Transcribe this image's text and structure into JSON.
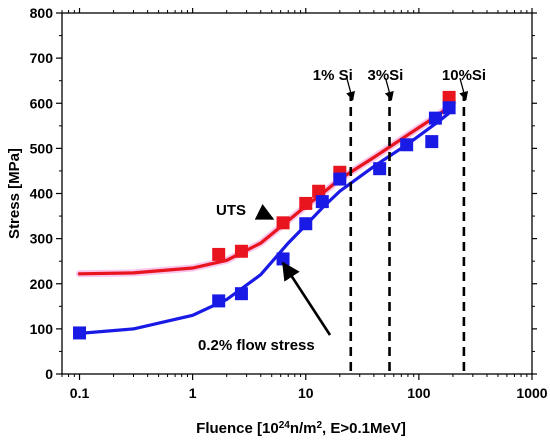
{
  "chart_data": {
    "type": "scatter",
    "xscale": "log",
    "xlim": [
      0.07,
      1000
    ],
    "ylim": [
      0,
      800
    ],
    "xlabel": {
      "base": "Fluence [10",
      "sup1": "24",
      "mid": "n/m",
      "sup2": "2",
      "end": ", E>0.1MeV]"
    },
    "ylabel": "Stress [MPa]",
    "xticks": [
      0.1,
      1,
      10,
      100,
      1000
    ],
    "xtick_labels": [
      "0.1",
      "1",
      "10",
      "100",
      "1000"
    ],
    "yticks": [
      0,
      100,
      200,
      300,
      400,
      500,
      600,
      700,
      800
    ],
    "ytick_labels": [
      "0",
      "100",
      "200",
      "300",
      "400",
      "500",
      "600",
      "700",
      "800"
    ],
    "grid": false,
    "series": [
      {
        "name": "UTS",
        "color": "#e8141e",
        "marker": "square",
        "points": [
          {
            "x": 1.7,
            "y": 265
          },
          {
            "x": 2.7,
            "y": 272
          },
          {
            "x": 6.3,
            "y": 335
          },
          {
            "x": 10.0,
            "y": 378
          },
          {
            "x": 13.0,
            "y": 405
          },
          {
            "x": 20.0,
            "y": 447
          },
          {
            "x": 185,
            "y": 613
          }
        ],
        "fit": [
          {
            "x": 0.1,
            "y": 222
          },
          {
            "x": 0.3,
            "y": 224
          },
          {
            "x": 1.0,
            "y": 235
          },
          {
            "x": 2.0,
            "y": 252
          },
          {
            "x": 4.0,
            "y": 290
          },
          {
            "x": 7.0,
            "y": 340
          },
          {
            "x": 10.0,
            "y": 372
          },
          {
            "x": 14.0,
            "y": 400
          },
          {
            "x": 20.0,
            "y": 432
          },
          {
            "x": 40.0,
            "y": 480
          },
          {
            "x": 80.0,
            "y": 530
          },
          {
            "x": 150.0,
            "y": 575
          },
          {
            "x": 200.0,
            "y": 600
          }
        ]
      },
      {
        "name": "0.2% flow stress",
        "color": "#1a1ae6",
        "marker": "square",
        "points": [
          {
            "x": 0.1,
            "y": 91
          },
          {
            "x": 1.7,
            "y": 162
          },
          {
            "x": 2.7,
            "y": 178
          },
          {
            "x": 6.3,
            "y": 255
          },
          {
            "x": 10.0,
            "y": 333
          },
          {
            "x": 14.0,
            "y": 382
          },
          {
            "x": 20.0,
            "y": 432
          },
          {
            "x": 45,
            "y": 455
          },
          {
            "x": 78,
            "y": 508
          },
          {
            "x": 130,
            "y": 515
          },
          {
            "x": 140,
            "y": 567
          },
          {
            "x": 185,
            "y": 590
          }
        ],
        "fit": [
          {
            "x": 0.1,
            "y": 90
          },
          {
            "x": 0.3,
            "y": 100
          },
          {
            "x": 1.0,
            "y": 130
          },
          {
            "x": 2.0,
            "y": 165
          },
          {
            "x": 4.0,
            "y": 220
          },
          {
            "x": 7.0,
            "y": 290
          },
          {
            "x": 10.0,
            "y": 330
          },
          {
            "x": 14.0,
            "y": 368
          },
          {
            "x": 20.0,
            "y": 405
          },
          {
            "x": 40.0,
            "y": 460
          },
          {
            "x": 80.0,
            "y": 510
          },
          {
            "x": 150.0,
            "y": 560
          },
          {
            "x": 200.0,
            "y": 585
          }
        ]
      }
    ],
    "vertical_lines": [
      {
        "x": 25,
        "label": "1% Si"
      },
      {
        "x": 55,
        "label": "3%Si"
      },
      {
        "x": 250,
        "label": "10%Si"
      }
    ],
    "annotations": [
      {
        "text": "UTS",
        "arrow_to": {
          "x": 6.0,
          "y": 335
        }
      },
      {
        "text": "0.2% flow stress",
        "arrow_to": {
          "x": 6.3,
          "y": 215
        }
      }
    ]
  }
}
